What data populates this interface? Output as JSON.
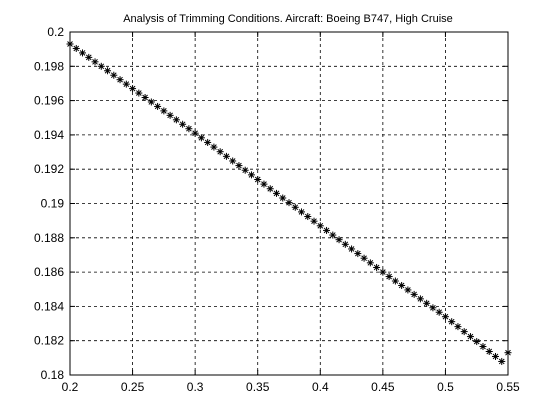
{
  "chart_data": {
    "type": "scatter",
    "title": "Analysis of Trimming Conditions. Aircraft: Boeing B747, High Cruise",
    "xlabel": "",
    "ylabel": "",
    "xlim": [
      0.2,
      0.55
    ],
    "ylim": [
      0.18,
      0.2
    ],
    "grid": true,
    "marker": "asterisk",
    "marker_color": "#000000",
    "x_ticks": [
      "0.2",
      "0.25",
      "0.3",
      "0.35",
      "0.4",
      "0.45",
      "0.5",
      "0.55"
    ],
    "y_ticks": [
      "0.18",
      "0.182",
      "0.184",
      "0.186",
      "0.188",
      "0.19",
      "0.192",
      "0.194",
      "0.196",
      "0.198",
      "0.2"
    ],
    "series": [
      {
        "x": [
          0.2,
          0.205,
          0.21,
          0.215,
          0.22,
          0.225,
          0.23,
          0.235,
          0.24,
          0.245,
          0.25,
          0.255,
          0.26,
          0.265,
          0.27,
          0.275,
          0.28,
          0.285,
          0.29,
          0.295,
          0.3,
          0.305,
          0.31,
          0.315,
          0.32,
          0.325,
          0.33,
          0.335,
          0.34,
          0.345,
          0.35,
          0.355,
          0.36,
          0.365,
          0.37,
          0.375,
          0.38,
          0.385,
          0.39,
          0.395,
          0.4,
          0.405,
          0.41,
          0.415,
          0.42,
          0.425,
          0.43,
          0.435,
          0.44,
          0.445,
          0.45,
          0.455,
          0.46,
          0.465,
          0.47,
          0.475,
          0.48,
          0.485,
          0.49,
          0.495,
          0.5,
          0.505,
          0.51,
          0.515,
          0.52,
          0.525,
          0.53,
          0.535,
          0.54,
          0.545,
          0.55
        ],
        "y": [
          0.1993,
          0.19904,
          0.19878,
          0.19852,
          0.19826,
          0.198,
          0.19774,
          0.19748,
          0.19722,
          0.19696,
          0.1967,
          0.19644,
          0.19618,
          0.19592,
          0.19566,
          0.1954,
          0.19514,
          0.19488,
          0.19462,
          0.19436,
          0.1941,
          0.19383,
          0.19356,
          0.19329,
          0.19302,
          0.19275,
          0.19248,
          0.19221,
          0.19194,
          0.19167,
          0.1914,
          0.19113,
          0.19086,
          0.19059,
          0.19032,
          0.19005,
          0.18978,
          0.18951,
          0.18924,
          0.18897,
          0.1887,
          0.18843,
          0.18816,
          0.18789,
          0.18762,
          0.18735,
          0.18708,
          0.18681,
          0.18654,
          0.18627,
          0.186,
          0.18574,
          0.18548,
          0.18522,
          0.18496,
          0.1847,
          0.18444,
          0.18418,
          0.18392,
          0.18366,
          0.1834,
          0.18311,
          0.18282,
          0.18253,
          0.18224,
          0.18195,
          0.18166,
          0.18137,
          0.18108,
          0.18079,
          0.1813
        ]
      }
    ]
  }
}
